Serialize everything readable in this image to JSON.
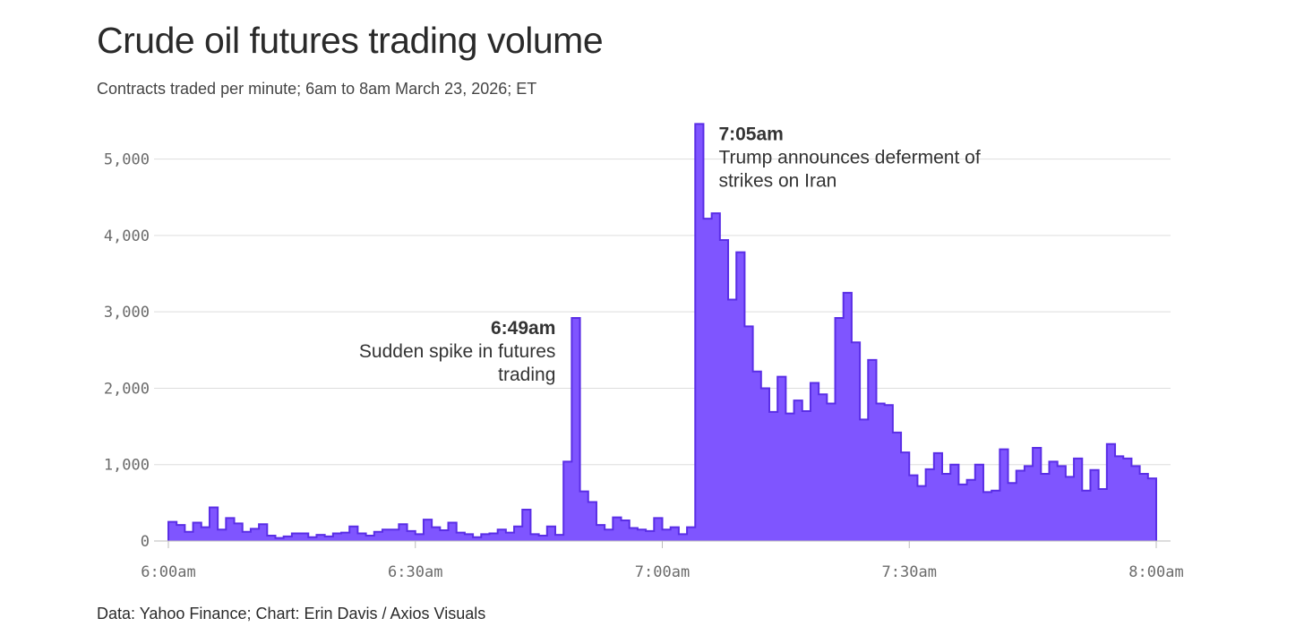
{
  "header": {
    "title": "Crude oil futures trading volume",
    "subtitle": "Contracts traded per minute; 6am to 8am March 23, 2026; ET"
  },
  "footer": {
    "source": "Data: Yahoo Finance; Chart: Erin Davis / Axios Visuals"
  },
  "colors": {
    "bar_fill": "#7f55ff",
    "bar_stroke": "#5a2ee6",
    "grid": "#dddddd",
    "axis": "#bbbbbb"
  },
  "chart_data": {
    "type": "area",
    "step": true,
    "title": "Crude oil futures trading volume",
    "subtitle": "Contracts traded per minute; 6am to 8am March 23, 2026; ET",
    "xlabel": "",
    "ylabel": "",
    "x_unit": "minute after 6:00am",
    "xlim": [
      0,
      120
    ],
    "ylim": [
      0,
      5500
    ],
    "grid": true,
    "y_ticks": [
      {
        "value": 0,
        "label": "0"
      },
      {
        "value": 1000,
        "label": "1,000"
      },
      {
        "value": 2000,
        "label": "2,000"
      },
      {
        "value": 3000,
        "label": "3,000"
      },
      {
        "value": 4000,
        "label": "4,000"
      },
      {
        "value": 5000,
        "label": "5,000"
      }
    ],
    "x_ticks": [
      {
        "value": 0,
        "label": "6:00am"
      },
      {
        "value": 30,
        "label": "6:30am"
      },
      {
        "value": 60,
        "label": "7:00am"
      },
      {
        "value": 90,
        "label": "7:30am"
      },
      {
        "value": 120,
        "label": "8:00am"
      }
    ],
    "series": [
      {
        "name": "Contracts traded per minute",
        "values": [
          250,
          210,
          120,
          240,
          180,
          440,
          150,
          300,
          230,
          120,
          160,
          220,
          70,
          40,
          60,
          100,
          100,
          50,
          80,
          60,
          100,
          110,
          190,
          100,
          70,
          120,
          150,
          150,
          220,
          130,
          90,
          280,
          180,
          140,
          240,
          110,
          90,
          50,
          90,
          100,
          150,
          110,
          190,
          410,
          90,
          70,
          190,
          80,
          1040,
          2920,
          650,
          510,
          210,
          150,
          310,
          270,
          170,
          150,
          130,
          300,
          150,
          180,
          90,
          180,
          5460,
          4220,
          4290,
          3940,
          3160,
          3780,
          2810,
          2220,
          2000,
          1690,
          2150,
          1670,
          1840,
          1700,
          2070,
          1920,
          1800,
          2920,
          3250,
          2600,
          1590,
          2370,
          1800,
          1780,
          1420,
          1160,
          860,
          720,
          940,
          1150,
          880,
          1000,
          740,
          800,
          1000,
          640,
          660,
          1200,
          760,
          920,
          980,
          1220,
          880,
          1040,
          980,
          840,
          1080,
          660,
          930,
          680,
          1270,
          1110,
          1080,
          980,
          880,
          820
        ]
      }
    ],
    "annotations": [
      {
        "x": 49,
        "time": "6:49am",
        "lines": [
          "Sudden spike in futures",
          "trading"
        ],
        "align": "right"
      },
      {
        "x": 64,
        "time": "7:05am",
        "lines": [
          "Trump announces deferment of",
          "strikes on Iran"
        ],
        "align": "left"
      }
    ]
  }
}
